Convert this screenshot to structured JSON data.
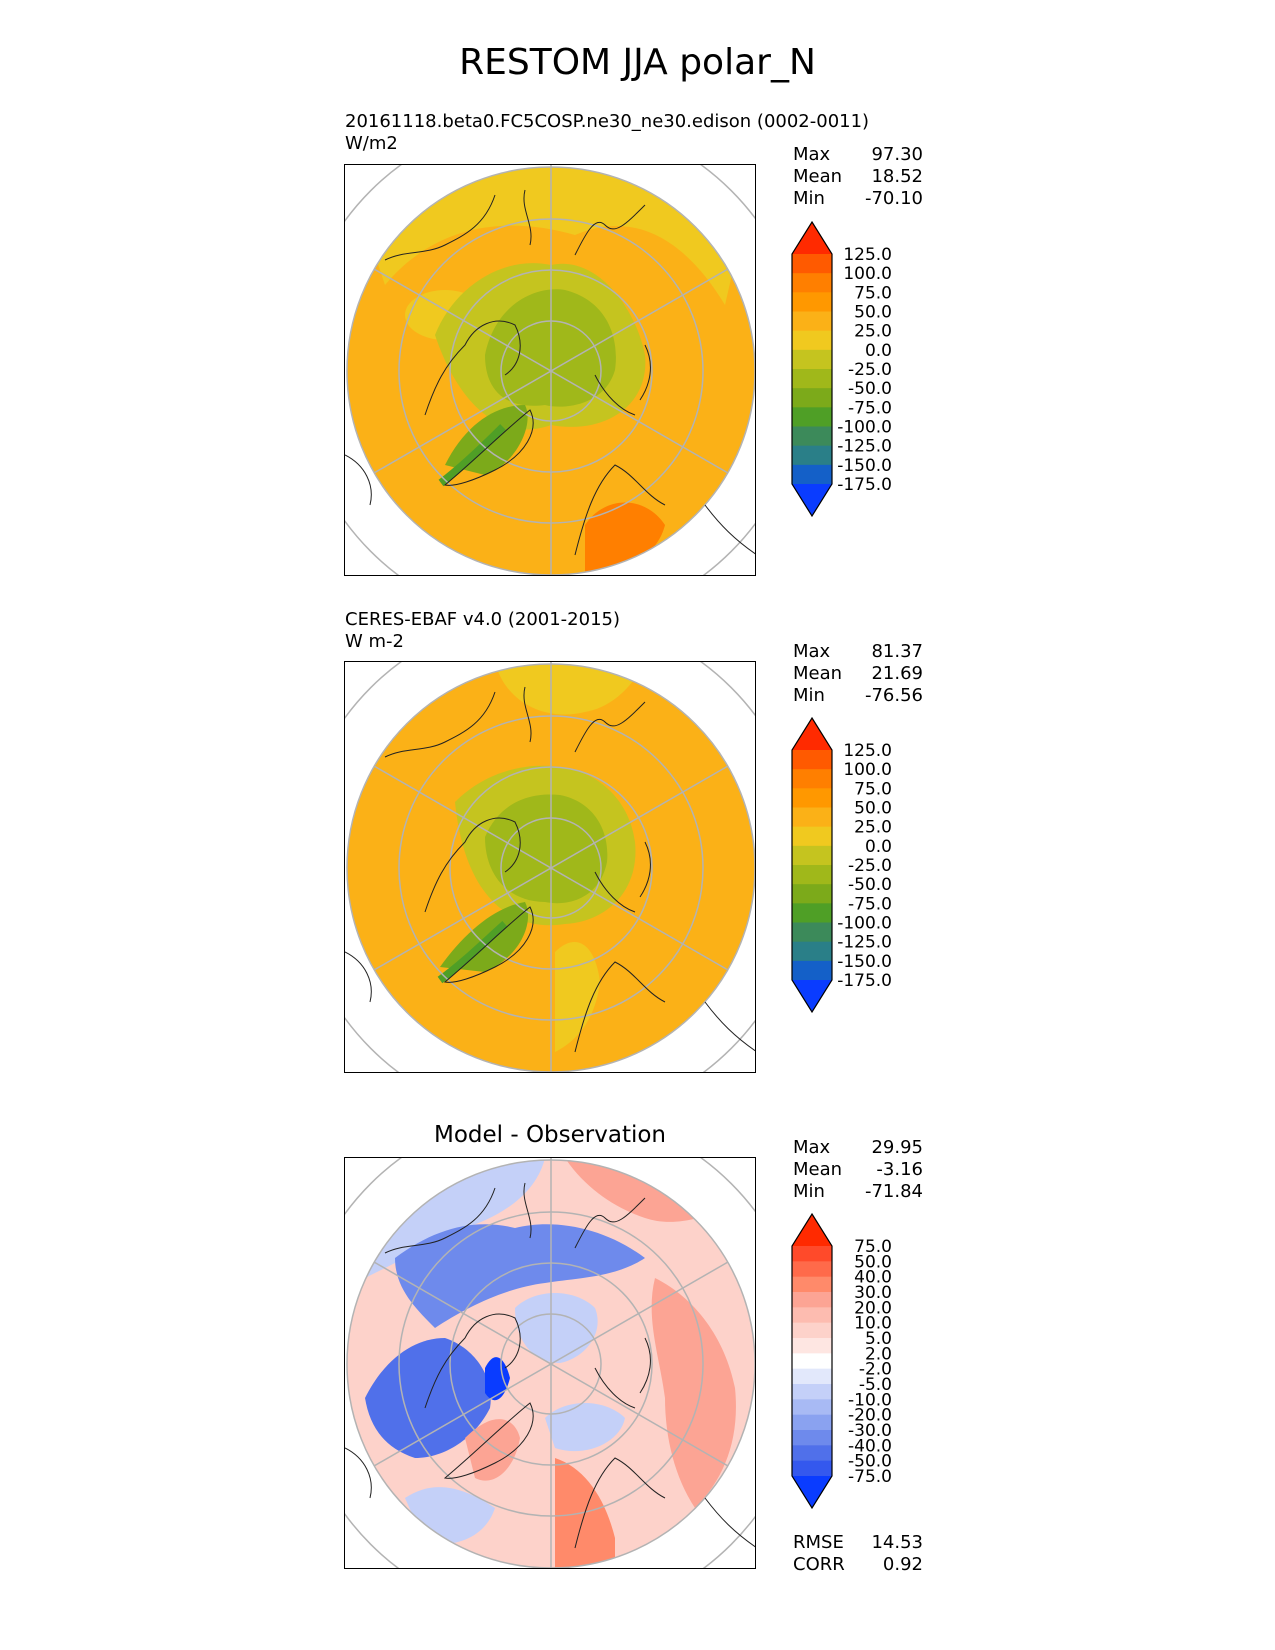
{
  "title": "RESTOM JJA polar_N",
  "panels": [
    {
      "id": "test",
      "title_lines": [
        "20161118.beta0.FC5COSP.ne30_ne30.edison (0002-0011)",
        "W/m2"
      ],
      "stats": [
        {
          "label": "Max",
          "value": "97.30"
        },
        {
          "label": "Mean",
          "value": "18.52"
        },
        {
          "label": "Min",
          "value": "-70.10"
        }
      ],
      "colorbar": {
        "labels": [
          "125.0",
          "100.0",
          "75.0",
          "50.0",
          "25.0",
          "0.0",
          "-25.0",
          "-50.0",
          "-75.0",
          "-100.0",
          "-125.0",
          "-150.0",
          "-175.0"
        ],
        "colors": [
          "#ff2a00",
          "#ff5a00",
          "#ff7f00",
          "#ff9800",
          "#fbb117",
          "#f0c91f",
          "#c5c41f",
          "#a0b81a",
          "#7caa1a",
          "#4f9f26",
          "#3c8a5a",
          "#2a7f88",
          "#1460c8",
          "#0a3cff"
        ]
      }
    },
    {
      "id": "reference",
      "title_lines": [
        "CERES-EBAF v4.0 (2001-2015)",
        "W m-2"
      ],
      "stats": [
        {
          "label": "Max",
          "value": "81.37"
        },
        {
          "label": "Mean",
          "value": "21.69"
        },
        {
          "label": "Min",
          "value": "-76.56"
        }
      ],
      "colorbar": {
        "labels": [
          "125.0",
          "100.0",
          "75.0",
          "50.0",
          "25.0",
          "0.0",
          "-25.0",
          "-50.0",
          "-75.0",
          "-100.0",
          "-125.0",
          "-150.0",
          "-175.0"
        ],
        "colors": [
          "#ff2a00",
          "#ff5a00",
          "#ff7f00",
          "#ff9800",
          "#fbb117",
          "#f0c91f",
          "#c5c41f",
          "#a0b81a",
          "#7caa1a",
          "#4f9f26",
          "#3c8a5a",
          "#2a7f88",
          "#1460c8",
          "#0a3cff"
        ]
      }
    },
    {
      "id": "difference",
      "title_lines": [
        "Model - Observation"
      ],
      "stats": [
        {
          "label": "Max",
          "value": "29.95"
        },
        {
          "label": "Mean",
          "value": "-3.16"
        },
        {
          "label": "Min",
          "value": "-71.84"
        }
      ],
      "extra_stats": [
        {
          "label": "RMSE",
          "value": "14.53"
        },
        {
          "label": "CORR",
          "value": "0.92"
        }
      ],
      "colorbar": {
        "labels": [
          "75.0",
          "50.0",
          "40.0",
          "30.0",
          "20.0",
          "10.0",
          "5.0",
          "2.0",
          "-2.0",
          "-5.0",
          "-10.0",
          "-20.0",
          "-30.0",
          "-40.0",
          "-50.0",
          "-75.0"
        ],
        "colors": [
          "#ff2a00",
          "#ff4a2a",
          "#ff6a4a",
          "#ff8a6a",
          "#fca494",
          "#fdbcb0",
          "#fdd2ca",
          "#fee6e2",
          "#ffffff",
          "#e2e8fb",
          "#c4d0f8",
          "#a8baf4",
          "#8aa2f0",
          "#6e8aec",
          "#5070ea",
          "#3458ee",
          "#0a3cff"
        ]
      }
    }
  ],
  "chart_data": [
    {
      "type": "heatmap",
      "projection": "north-polar-stereographic",
      "title": "20161118.beta0.FC5COSP.ne30_ne30.edison (0002-0011)",
      "units": "W/m2",
      "levels": [
        -175,
        -150,
        -125,
        -100,
        -75,
        -50,
        -25,
        0,
        25,
        50,
        75,
        100,
        125
      ],
      "max": 97.3,
      "mean": 18.52,
      "min": -70.1
    },
    {
      "type": "heatmap",
      "projection": "north-polar-stereographic",
      "title": "CERES-EBAF v4.0 (2001-2015)",
      "units": "W m-2",
      "levels": [
        -175,
        -150,
        -125,
        -100,
        -75,
        -50,
        -25,
        0,
        25,
        50,
        75,
        100,
        125
      ],
      "max": 81.37,
      "mean": 21.69,
      "min": -76.56
    },
    {
      "type": "heatmap",
      "projection": "north-polar-stereographic",
      "title": "Model - Observation",
      "levels": [
        -75,
        -50,
        -40,
        -30,
        -20,
        -10,
        -5,
        -2,
        2,
        5,
        10,
        20,
        30,
        40,
        50,
        75
      ],
      "max": 29.95,
      "mean": -3.16,
      "min": -71.84,
      "rmse": 14.53,
      "corr": 0.92
    }
  ]
}
